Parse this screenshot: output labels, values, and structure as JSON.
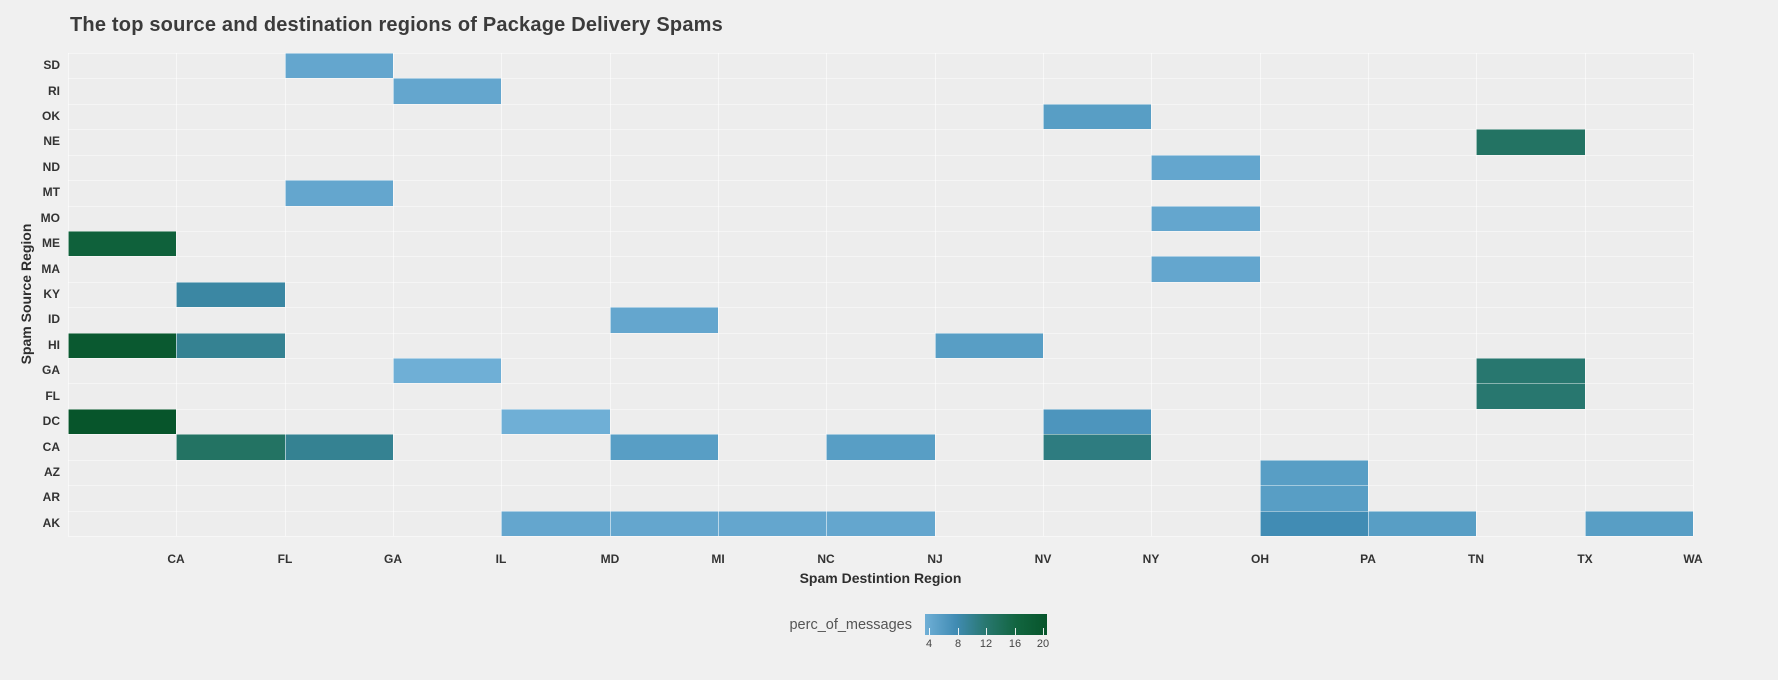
{
  "chart_data": {
    "type": "heatmap",
    "title": "The top source and destination regions of Package Delivery Spams",
    "xlabel": "Spam Destintion Region",
    "ylabel": "Spam Source Region",
    "x_categories": [
      "CA",
      "FL",
      "GA",
      "IL",
      "MD",
      "MI",
      "NC",
      "NJ",
      "NV",
      "NY",
      "OH",
      "PA",
      "TN",
      "TX",
      "WA"
    ],
    "y_categories": [
      "SD",
      "RI",
      "OK",
      "NE",
      "ND",
      "MT",
      "MO",
      "ME",
      "MA",
      "KY",
      "ID",
      "HI",
      "GA",
      "FL",
      "DC",
      "CA",
      "AZ",
      "AR",
      "AK"
    ],
    "legend": {
      "title": "perc_of_messages",
      "ticks": [
        4,
        8,
        12,
        16,
        20
      ],
      "gradient_stops": [
        [
          4,
          "#6fafd6"
        ],
        [
          8,
          "#418cb4"
        ],
        [
          12,
          "#28776f"
        ],
        [
          16,
          "#126540"
        ],
        [
          20,
          "#07552b"
        ]
      ]
    },
    "background_color": "#f0f0f0",
    "cells": [
      {
        "source": "SD",
        "dest": "GA",
        "value": 5
      },
      {
        "source": "RI",
        "dest": "IL",
        "value": 5
      },
      {
        "source": "OK",
        "dest": "NY",
        "value": 6
      },
      {
        "source": "NE",
        "dest": "TX",
        "value": 13
      },
      {
        "source": "ND",
        "dest": "OH",
        "value": 5
      },
      {
        "source": "MT",
        "dest": "GA",
        "value": 5
      },
      {
        "source": "MO",
        "dest": "OH",
        "value": 5
      },
      {
        "source": "ME",
        "dest": "CA",
        "value": 17
      },
      {
        "source": "MA",
        "dest": "OH",
        "value": 5
      },
      {
        "source": "KY",
        "dest": "FL",
        "value": 9
      },
      {
        "source": "ID",
        "dest": "MI",
        "value": 5
      },
      {
        "source": "HI",
        "dest": "CA",
        "value": 19
      },
      {
        "source": "HI",
        "dest": "FL",
        "value": 10
      },
      {
        "source": "HI",
        "dest": "NV",
        "value": 6
      },
      {
        "source": "GA",
        "dest": "IL",
        "value": 4
      },
      {
        "source": "GA",
        "dest": "TX",
        "value": 12
      },
      {
        "source": "FL",
        "dest": "TX",
        "value": 12
      },
      {
        "source": "DC",
        "dest": "CA",
        "value": 20
      },
      {
        "source": "DC",
        "dest": "MD",
        "value": 4
      },
      {
        "source": "DC",
        "dest": "NY",
        "value": 7
      },
      {
        "source": "CA",
        "dest": "FL",
        "value": 13
      },
      {
        "source": "CA",
        "dest": "GA",
        "value": 10
      },
      {
        "source": "CA",
        "dest": "MI",
        "value": 6
      },
      {
        "source": "CA",
        "dest": "NJ",
        "value": 6
      },
      {
        "source": "CA",
        "dest": "NY",
        "value": 11
      },
      {
        "source": "AZ",
        "dest": "PA",
        "value": 6
      },
      {
        "source": "AR",
        "dest": "PA",
        "value": 6
      },
      {
        "source": "AK",
        "dest": "MD",
        "value": 5
      },
      {
        "source": "AK",
        "dest": "MI",
        "value": 5
      },
      {
        "source": "AK",
        "dest": "NC",
        "value": 5
      },
      {
        "source": "AK",
        "dest": "NJ",
        "value": 5
      },
      {
        "source": "AK",
        "dest": "PA",
        "value": 8
      },
      {
        "source": "AK",
        "dest": "TN",
        "value": 6
      },
      {
        "source": "AK",
        "dest": "WA",
        "value": 6
      }
    ]
  }
}
